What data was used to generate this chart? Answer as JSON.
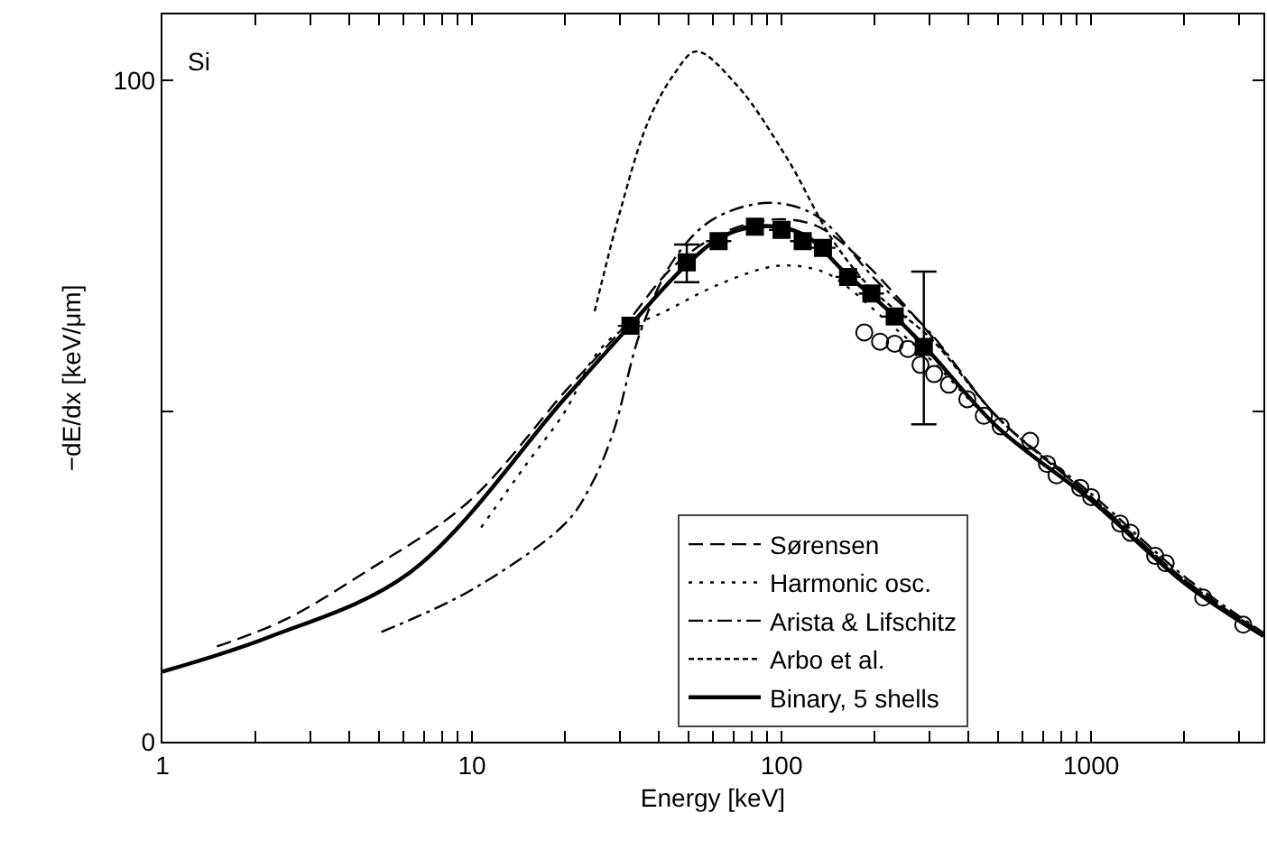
{
  "chart_data": {
    "type": "line",
    "xlabel": "Energy [keV]",
    "ylabel": "−dE/dx [keV/μm]",
    "annotations": [
      "Si"
    ],
    "log": "x",
    "xlim": [
      1,
      3600
    ],
    "ylim": [
      0,
      110
    ],
    "xticks": [
      1,
      {
        "value": 2,
        "label": null
      },
      {
        "value": 3,
        "label": null
      },
      {
        "value": 4,
        "label": null
      },
      {
        "value": 5,
        "label": null
      },
      {
        "value": 6,
        "label": null
      },
      {
        "value": 7,
        "label": null
      },
      {
        "value": 8,
        "label": null
      },
      {
        "value": 9,
        "label": null
      },
      10,
      {
        "value": 20,
        "label": null
      },
      {
        "value": 30,
        "label": null
      },
      {
        "value": 40,
        "label": null
      },
      {
        "value": 50,
        "label": null
      },
      {
        "value": 60,
        "label": null
      },
      {
        "value": 70,
        "label": null
      },
      {
        "value": 80,
        "label": null
      },
      {
        "value": 90,
        "label": null
      },
      100,
      {
        "value": 200,
        "label": null
      },
      {
        "value": 300,
        "label": null
      },
      {
        "value": 400,
        "label": null
      },
      {
        "value": 500,
        "label": null
      },
      {
        "value": 600,
        "label": null
      },
      {
        "value": 700,
        "label": null
      },
      {
        "value": 800,
        "label": null
      },
      {
        "value": 900,
        "label": null
      },
      1000,
      {
        "value": 2000,
        "label": null
      },
      {
        "value": 3000,
        "label": null
      }
    ],
    "yticks": [
      0,
      {
        "value": 50,
        "label": null
      },
      100
    ],
    "legend": "bottom",
    "series": [
      {
        "name": "Sørensen",
        "color": "#000000",
        "line_style": "dashed",
        "x": [
          1.5,
          2.5,
          4.5,
          9.7,
          20,
          30,
          45,
          65,
          95,
          130,
          180,
          250,
          350,
          500,
          1000,
          2000,
          3600
        ],
        "values": [
          14.4,
          18.5,
          25.6,
          36.2,
          53,
          62,
          72,
          77,
          79,
          78,
          73,
          66,
          58,
          49,
          37,
          24.5,
          16.3
        ]
      },
      {
        "name": "Harmonic osc.",
        "color": "#000000",
        "line_style": "dotted",
        "x": [
          10.7,
          15,
          20,
          24.9,
          30,
          40.8,
          63,
          98,
          136,
          162,
          220,
          300,
          500,
          1000,
          2000,
          3600
        ],
        "values": [
          32.4,
          42,
          50,
          58.3,
          62,
          64.8,
          69.2,
          72,
          71.1,
          68.9,
          63.5,
          58,
          47.5,
          36.5,
          24,
          16
        ]
      },
      {
        "name": "Arista & Lifschitz",
        "color": "#000000",
        "line_style": "dashdot",
        "x": [
          5.1,
          10,
          20,
          24,
          28.5,
          35,
          45,
          60,
          91,
          130,
          200,
          300,
          500,
          1000,
          2000,
          3600
        ],
        "values": [
          16.6,
          23,
          33,
          38.4,
          46.6,
          62,
          73,
          79,
          81.5,
          79.5,
          70,
          62,
          49,
          37.5,
          25,
          16.5
        ]
      },
      {
        "name": "Arbo et al.",
        "color": "#000000",
        "line_style": "shortdash",
        "x": [
          24.9,
          30,
          37,
          45,
          53,
          72,
          104,
          147,
          200,
          303,
          500,
          1000,
          2000,
          3600
        ],
        "values": [
          65.1,
          80,
          93.7,
          101,
          104.4,
          99.2,
          88.3,
          75.7,
          68,
          61,
          49,
          37,
          24.5,
          16.3
        ]
      },
      {
        "name": "Binary, 5 shells",
        "color": "#000000",
        "line_style": "solid",
        "x": [
          1,
          2.2,
          6.3,
          20,
          32.5,
          49,
          65,
          90,
          120,
          160,
          230,
          300,
          500,
          1000,
          2000,
          3600
        ],
        "values": [
          10.6,
          15.8,
          25.6,
          52,
          63,
          72,
          76.5,
          78,
          76.5,
          71,
          64.5,
          59,
          47.5,
          36.5,
          24,
          16
        ]
      },
      {
        "type": "scatter",
        "marker": "square",
        "color": "#000000",
        "x": [
          32.5,
          49.4,
          62.6,
          82,
          100,
          117,
          136,
          164,
          195,
          232,
          288
        ],
        "values": [
          62.9,
          72.5,
          75.7,
          77.9,
          77.4,
          75.7,
          74.7,
          70.3,
          67.8,
          64.3,
          59.7
        ],
        "errors": [
          null,
          [
            69.5,
            75.2
          ],
          null,
          null,
          null,
          null,
          null,
          null,
          null,
          null,
          [
            48,
            71.1
          ]
        ]
      },
      {
        "type": "scatter",
        "marker": "circle",
        "color": "#000000",
        "x": [
          185,
          208,
          232,
          256,
          281,
          311,
          347,
          398,
          450,
          510,
          635,
          720,
          773,
          922,
          1000,
          1240,
          1340,
          1610,
          1740,
          2300,
          3100
        ],
        "values": [
          61.9,
          60.5,
          60.2,
          59.4,
          57,
          55.6,
          54,
          51.8,
          49.3,
          47.7,
          45.5,
          42,
          40.3,
          38.4,
          37,
          33,
          31.6,
          28.1,
          27,
          21.8,
          17.7
        ]
      }
    ]
  }
}
